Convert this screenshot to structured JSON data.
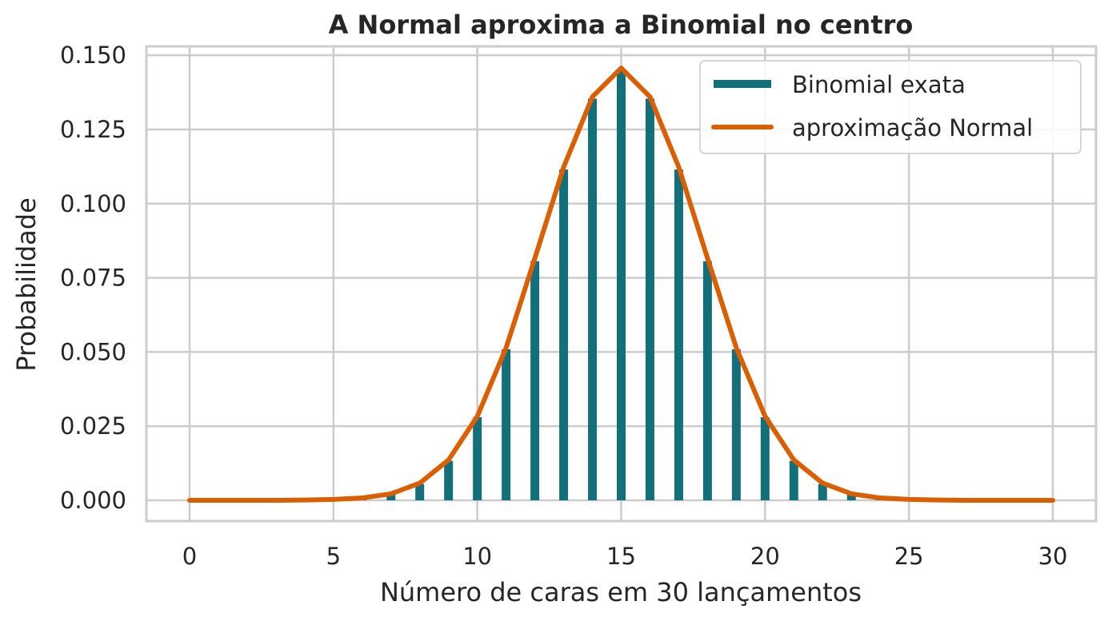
{
  "chart_data": {
    "type": "bar+line",
    "title": "A Normal aproxima a Binomial no centro",
    "xlabel": "Número de caras em 30 lançamentos",
    "ylabel": "Probabilidade",
    "xlim": [
      -1.5,
      31.5
    ],
    "ylim": [
      -0.007,
      0.153
    ],
    "xticks": [
      0,
      5,
      10,
      15,
      20,
      25,
      30
    ],
    "yticks": [
      0.0,
      0.025,
      0.05,
      0.075,
      0.1,
      0.125,
      0.15
    ],
    "ytick_labels": [
      "0.000",
      "0.025",
      "0.050",
      "0.075",
      "0.100",
      "0.125",
      "0.150"
    ],
    "grid": true,
    "legend_position": "top-right",
    "series": [
      {
        "name": "Binomial exata",
        "kind": "bar",
        "color": "#136f7a",
        "x": [
          0,
          1,
          2,
          3,
          4,
          5,
          6,
          7,
          8,
          9,
          10,
          11,
          12,
          13,
          14,
          15,
          16,
          17,
          18,
          19,
          20,
          21,
          22,
          23,
          24,
          25,
          26,
          27,
          28,
          29,
          30
        ],
        "values": [
          0.0,
          0.0,
          0.0,
          0.0,
          0.0,
          0.0001,
          0.0006,
          0.0019,
          0.0055,
          0.0133,
          0.028,
          0.0509,
          0.0806,
          0.1115,
          0.1354,
          0.1445,
          0.1354,
          0.1115,
          0.0806,
          0.0509,
          0.028,
          0.0133,
          0.0055,
          0.0019,
          0.0006,
          0.0001,
          0.0,
          0.0,
          0.0,
          0.0,
          0.0
        ]
      },
      {
        "name": "aproximação Normal",
        "kind": "line",
        "color": "#d95f02",
        "x": [
          0,
          1,
          2,
          3,
          4,
          5,
          6,
          7,
          8,
          9,
          10,
          11,
          12,
          13,
          14,
          15,
          16,
          17,
          18,
          19,
          20,
          21,
          22,
          23,
          24,
          25,
          26,
          27,
          28,
          29,
          30
        ],
        "values": [
          0.0,
          0.0,
          0.0,
          0.0,
          0.0001,
          0.0003,
          0.0008,
          0.0022,
          0.0058,
          0.0136,
          0.0283,
          0.0514,
          0.0816,
          0.1123,
          0.136,
          0.1457,
          0.136,
          0.1123,
          0.0816,
          0.0514,
          0.0283,
          0.0136,
          0.0058,
          0.0022,
          0.0008,
          0.0003,
          0.0001,
          0.0,
          0.0,
          0.0,
          0.0
        ]
      }
    ]
  }
}
